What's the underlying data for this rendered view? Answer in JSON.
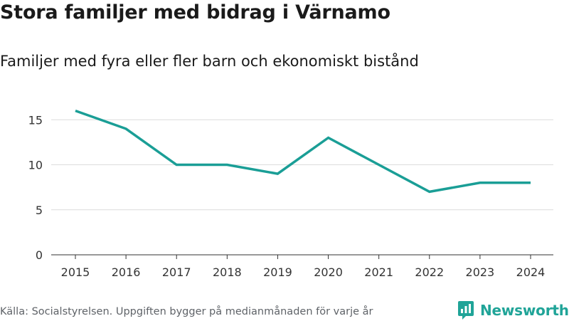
{
  "title": "Stora familjer med bidrag i Värnamo",
  "subtitle": "Familjer med fyra eller fler barn och ekonomiskt bistånd",
  "source": "Källa: Socialstyrelsen. Uppgiften bygger på medianmånaden för varje år",
  "brand": {
    "name": "Newsworthy",
    "icon": "newsworthy-logo-icon",
    "color": "#20a498"
  },
  "chart_data": {
    "type": "line",
    "title": "Stora familjer med bidrag i Värnamo",
    "subtitle": "Familjer med fyra eller fler barn och ekonomiskt bistånd",
    "xlabel": "",
    "ylabel": "",
    "x": [
      "2015",
      "2016",
      "2017",
      "2018",
      "2019",
      "2020",
      "2021",
      "2022",
      "2023",
      "2024"
    ],
    "series": [
      {
        "name": "Värnamo",
        "values": [
          16,
          14,
          10,
          10,
          9,
          13,
          10,
          7,
          8,
          8
        ],
        "color": "#1a9e96"
      }
    ],
    "ylim": [
      0,
      17
    ],
    "yticks": [
      0,
      5,
      10,
      15
    ],
    "grid": true,
    "legend": "none"
  }
}
